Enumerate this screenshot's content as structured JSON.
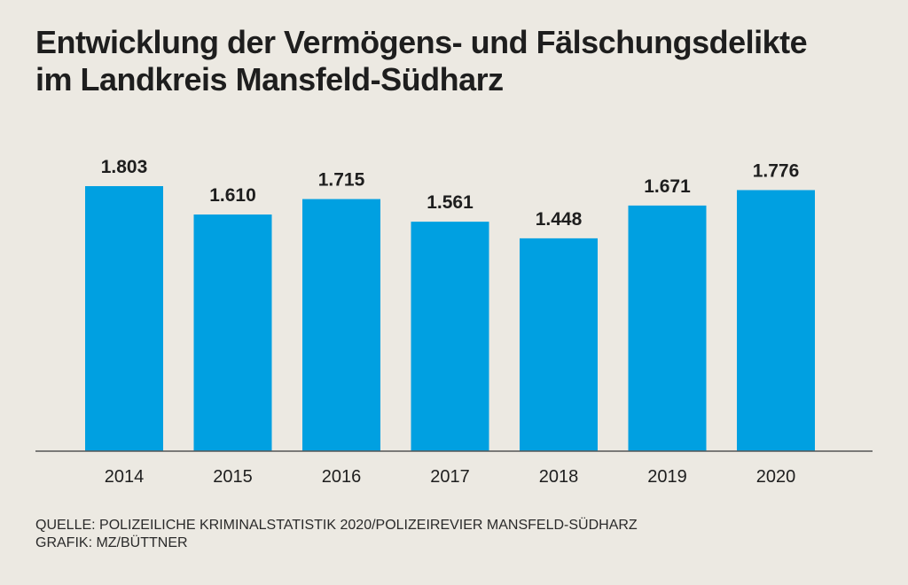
{
  "title": {
    "line1": "Entwicklung der Vermögens- und Fälschungsdelikte",
    "line2": "im Landkreis Mansfeld-Südharz"
  },
  "footer": {
    "source": "QUELLE: POLIZEILICHE KRIMINALSTATISTIK 2020/POLIZEIREVIER MANSFELD-SÜDHARZ",
    "credit": "GRAFIK: MZ/BÜTTNER"
  },
  "colors": {
    "bar": "#00a0e1",
    "background": "#ece9e2",
    "text": "#1e1e1e",
    "axis": "#555555"
  },
  "chart_data": {
    "type": "bar",
    "title": "Entwicklung der Vermögens- und Fälschungsdelikte im Landkreis Mansfeld-Südharz",
    "xlabel": "",
    "ylabel": "",
    "categories": [
      "2014",
      "2015",
      "2016",
      "2017",
      "2018",
      "2019",
      "2020"
    ],
    "values": [
      1803,
      1610,
      1715,
      1561,
      1448,
      1671,
      1776
    ],
    "value_labels": [
      "1.803",
      "1.610",
      "1.715",
      "1.561",
      "1.448",
      "1.671",
      "1.776"
    ],
    "ylim": [
      0,
      1803
    ],
    "grid": false,
    "legend": "none"
  }
}
